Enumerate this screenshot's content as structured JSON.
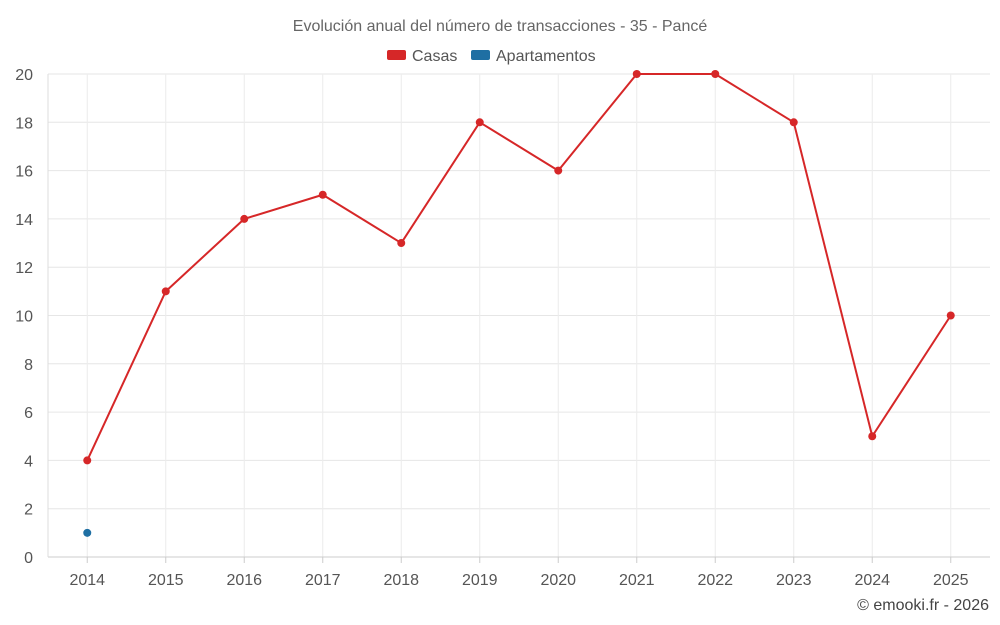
{
  "chart_data": {
    "type": "line",
    "title": "Evolución anual del número de transacciones - 35 - Pancé",
    "x": [
      "2014",
      "2015",
      "2016",
      "2017",
      "2018",
      "2019",
      "2020",
      "2021",
      "2022",
      "2023",
      "2024",
      "2025"
    ],
    "ylim": [
      0,
      20
    ],
    "yticks": [
      "0",
      "2",
      "4",
      "6",
      "8",
      "10",
      "12",
      "14",
      "16",
      "18",
      "20"
    ],
    "grid": true,
    "legend_position": "top-center",
    "series": [
      {
        "name": "Casas",
        "color": "#d62728",
        "values": [
          4,
          11,
          14,
          15,
          13,
          18,
          16,
          20,
          20,
          18,
          5,
          10
        ]
      },
      {
        "name": "Apartamentos",
        "color": "#1f6fa3",
        "values": [
          1,
          null,
          null,
          null,
          null,
          null,
          null,
          null,
          null,
          null,
          null,
          null
        ]
      }
    ],
    "credit": "© emooki.fr - 2026"
  }
}
